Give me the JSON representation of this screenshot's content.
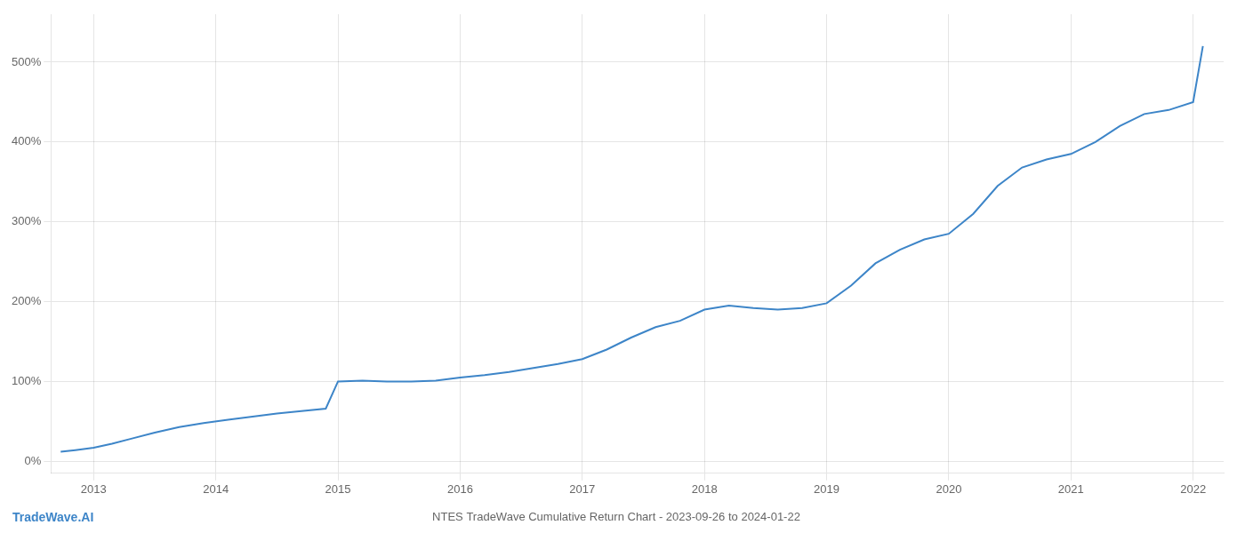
{
  "chart_data": {
    "type": "line",
    "title": "NTES TradeWave Cumulative Return Chart - 2023-09-26 to 2024-01-22",
    "annotations": [
      "TradeWave.AI"
    ],
    "color": "#3d85c8",
    "grid": true,
    "x": [
      2012.73,
      2012.85,
      2013.0,
      2013.15,
      2013.3,
      2013.5,
      2013.7,
      2013.9,
      2014.1,
      2014.3,
      2014.5,
      2014.7,
      2014.9,
      2015.0,
      2015.2,
      2015.4,
      2015.6,
      2015.8,
      2016.0,
      2016.2,
      2016.4,
      2016.6,
      2016.8,
      2017.0,
      2017.2,
      2017.4,
      2017.6,
      2017.8,
      2018.0,
      2018.2,
      2018.4,
      2018.6,
      2018.8,
      2019.0,
      2019.2,
      2019.4,
      2019.6,
      2019.8,
      2020.0,
      2020.2,
      2020.4,
      2020.6,
      2020.8,
      2021.0,
      2021.2,
      2021.4,
      2021.6,
      2021.8,
      2022.0,
      2022.08
    ],
    "values": [
      12,
      14,
      17,
      22,
      28,
      36,
      43,
      48,
      52,
      56,
      60,
      63,
      66,
      100,
      101,
      100,
      100,
      101,
      105,
      108,
      112,
      117,
      122,
      128,
      140,
      155,
      168,
      176,
      190,
      195,
      192,
      190,
      192,
      198,
      220,
      248,
      265,
      278,
      285,
      310,
      345,
      368,
      378,
      385,
      400,
      420,
      435,
      440,
      450,
      520
    ],
    "xlim": [
      2012.65,
      2022.25
    ],
    "xticks": [
      2013,
      2014,
      2015,
      2016,
      2017,
      2018,
      2019,
      2020,
      2021,
      2022
    ],
    "ylim": [
      -15,
      560
    ],
    "yticks": [
      {
        "value": 0,
        "label": "0%"
      },
      {
        "value": 100,
        "label": "100%"
      },
      {
        "value": 200,
        "label": "200%"
      },
      {
        "value": 300,
        "label": "300%"
      },
      {
        "value": 400,
        "label": "400%"
      },
      {
        "value": 500,
        "label": "500%"
      }
    ]
  }
}
